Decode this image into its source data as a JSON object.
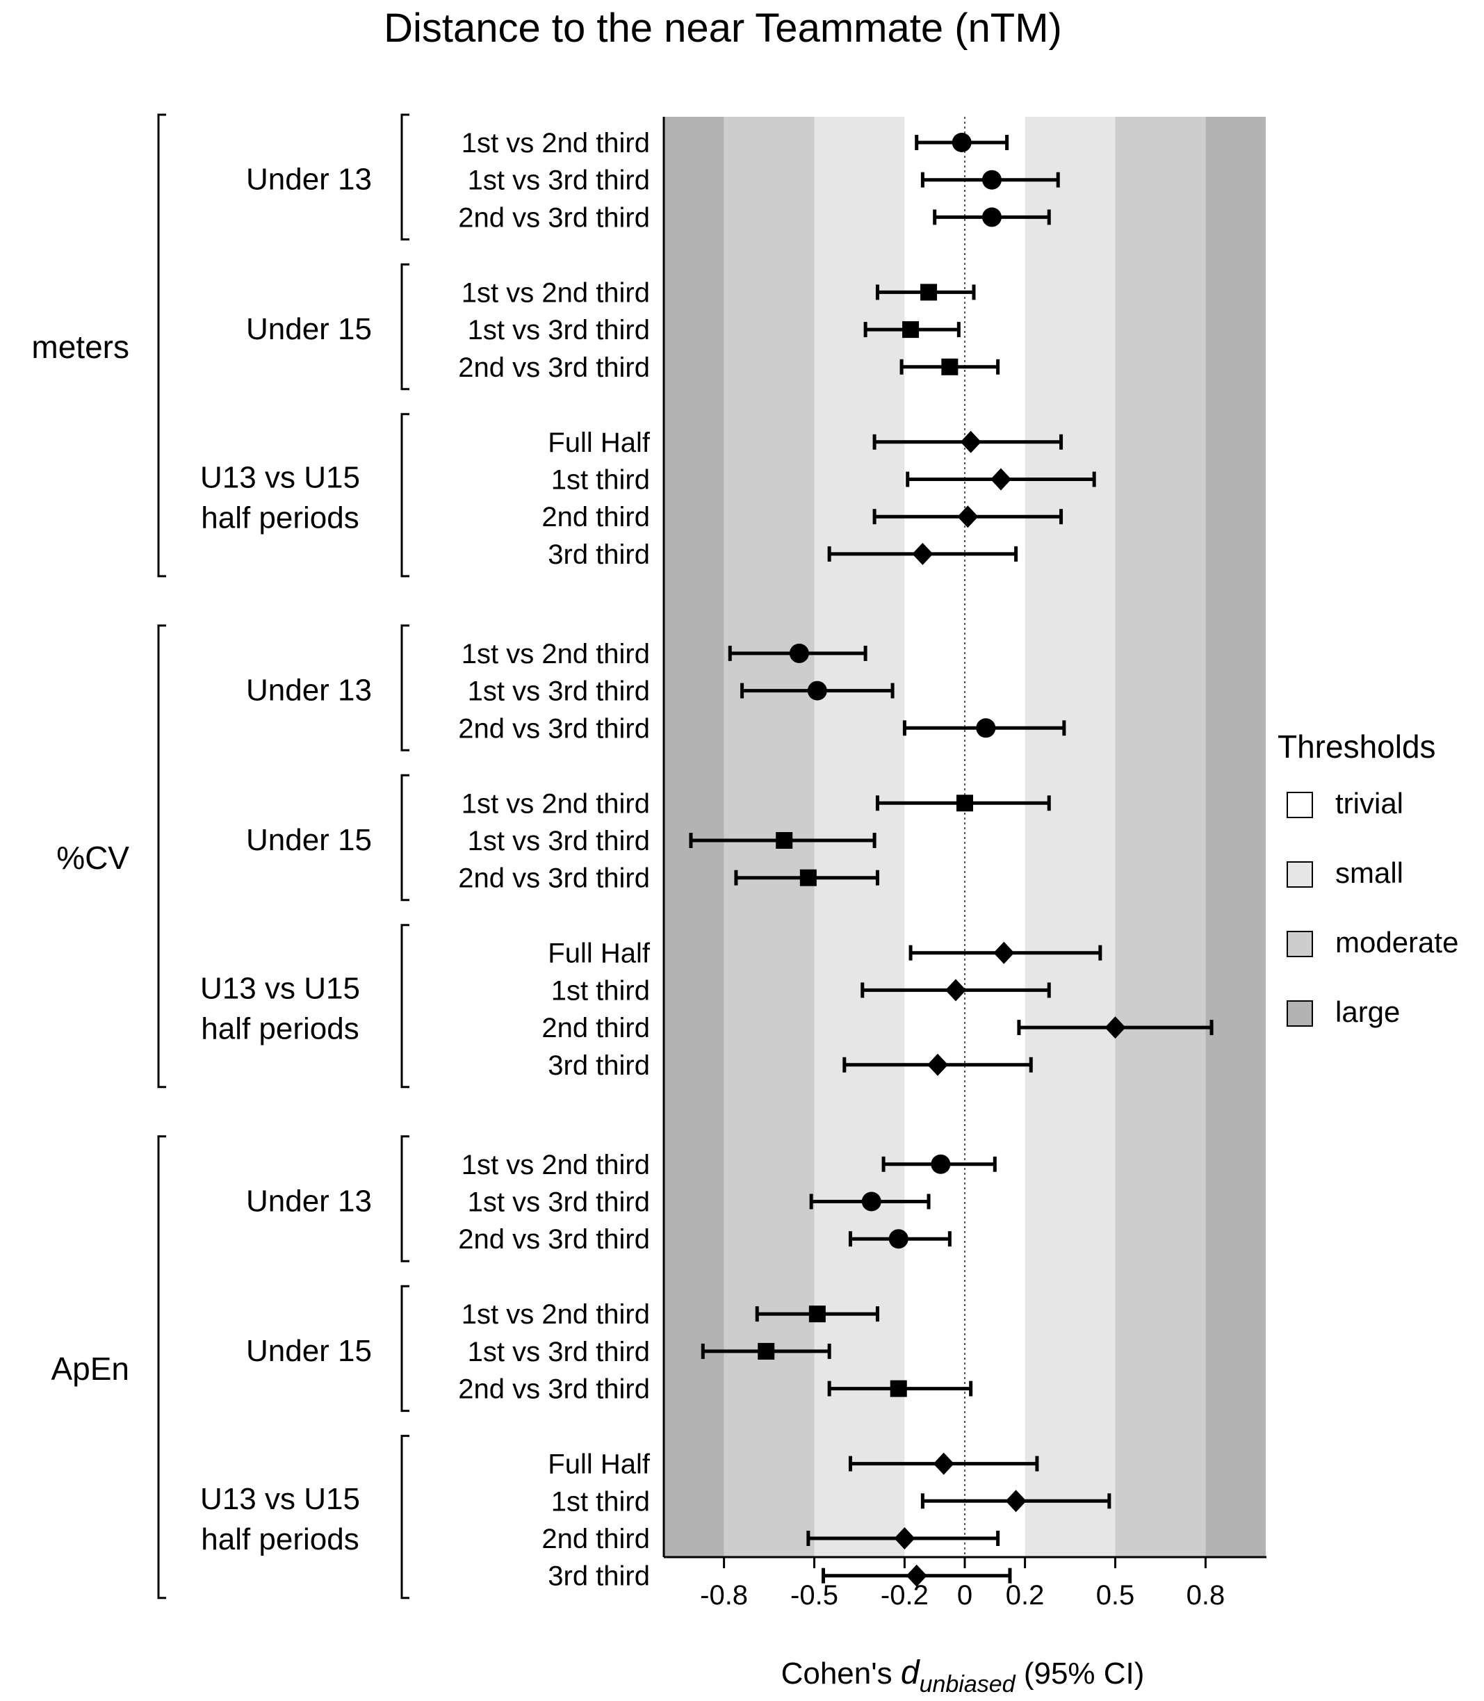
{
  "chart_data": {
    "type": "forest",
    "title": "Distance to the near Teammate (nTM)",
    "xlabel": "Cohen's ",
    "xlabel_italic": "d",
    "xlabel_subscript": "unbiased",
    "xlabel_suffix": " (95% CI)",
    "xlim": [
      -1.0,
      1.0
    ],
    "xticks": [
      {
        "value": -0.8,
        "label": "-0.8"
      },
      {
        "value": -0.5,
        "label": "-0.5"
      },
      {
        "value": -0.2,
        "label": "-0.2"
      },
      {
        "value": 0,
        "label": "0"
      },
      {
        "value": 0.2,
        "label": "0.2"
      },
      {
        "value": 0.5,
        "label": "0.5"
      },
      {
        "value": 0.8,
        "label": "0.8"
      }
    ],
    "reference_line": 0,
    "threshold_bands": [
      {
        "name": "trivial",
        "limits": [
          -0.2,
          0.2
        ],
        "color": "#ffffff"
      },
      {
        "name": "small",
        "limits": [
          0.2,
          0.5
        ],
        "color": "#e6e6e6"
      },
      {
        "name": "moderate",
        "limits": [
          0.5,
          0.8
        ],
        "color": "#cdcdcd"
      },
      {
        "name": "large",
        "limits": [
          0.8,
          1.0
        ],
        "color": "#b3b3b3"
      }
    ],
    "legend": {
      "title": "Thresholds",
      "position": "right",
      "items": [
        {
          "label": "trivial",
          "color": "#ffffff"
        },
        {
          "label": "small",
          "color": "#e6e6e6"
        },
        {
          "label": "moderate",
          "color": "#cdcdcd"
        },
        {
          "label": "large",
          "color": "#b3b3b3"
        }
      ]
    },
    "marker_legend": {
      "circle": "Under 13",
      "square": "Under 15",
      "diamond": "U13 vs U15 half periods"
    },
    "metrics": [
      {
        "name": "meters",
        "groups": [
          {
            "name": "Under 13",
            "marker": "circle",
            "rows": [
              {
                "label": "1st vs 2nd third",
                "est": -0.01,
                "lo": -0.16,
                "hi": 0.14
              },
              {
                "label": "1st vs 3rd third",
                "est": 0.09,
                "lo": -0.14,
                "hi": 0.31
              },
              {
                "label": "2nd vs 3rd third",
                "est": 0.09,
                "lo": -0.1,
                "hi": 0.28
              }
            ]
          },
          {
            "name": "Under 15",
            "marker": "square",
            "rows": [
              {
                "label": "1st vs 2nd third",
                "est": -0.12,
                "lo": -0.29,
                "hi": 0.03
              },
              {
                "label": "1st vs 3rd third",
                "est": -0.18,
                "lo": -0.33,
                "hi": -0.02
              },
              {
                "label": "2nd vs 3rd third",
                "est": -0.05,
                "lo": -0.21,
                "hi": 0.11
              }
            ]
          },
          {
            "name": "U13 vs U15 half periods",
            "name_lines": [
              "U13 vs U15",
              "half periods"
            ],
            "marker": "diamond",
            "rows": [
              {
                "label": "Full Half",
                "est": 0.02,
                "lo": -0.3,
                "hi": 0.32
              },
              {
                "label": "1st third",
                "est": 0.12,
                "lo": -0.19,
                "hi": 0.43
              },
              {
                "label": "2nd third",
                "est": 0.01,
                "lo": -0.3,
                "hi": 0.32
              },
              {
                "label": "3rd third",
                "est": -0.14,
                "lo": -0.45,
                "hi": 0.17
              }
            ]
          }
        ]
      },
      {
        "name": "%CV",
        "groups": [
          {
            "name": "Under 13",
            "marker": "circle",
            "rows": [
              {
                "label": "1st vs 2nd third",
                "est": -0.55,
                "lo": -0.78,
                "hi": -0.33
              },
              {
                "label": "1st vs 3rd third",
                "est": -0.49,
                "lo": -0.74,
                "hi": -0.24
              },
              {
                "label": "2nd vs 3rd third",
                "est": 0.07,
                "lo": -0.2,
                "hi": 0.33
              }
            ]
          },
          {
            "name": "Under 15",
            "marker": "square",
            "rows": [
              {
                "label": "1st vs 2nd third",
                "est": 0.0,
                "lo": -0.29,
                "hi": 0.28
              },
              {
                "label": "1st vs 3rd third",
                "est": -0.6,
                "lo": -0.91,
                "hi": -0.3
              },
              {
                "label": "2nd vs 3rd third",
                "est": -0.52,
                "lo": -0.76,
                "hi": -0.29
              }
            ]
          },
          {
            "name": "U13 vs U15 half periods",
            "name_lines": [
              "U13 vs U15",
              "half periods"
            ],
            "marker": "diamond",
            "rows": [
              {
                "label": "Full Half",
                "est": 0.13,
                "lo": -0.18,
                "hi": 0.45
              },
              {
                "label": "1st third",
                "est": -0.03,
                "lo": -0.34,
                "hi": 0.28
              },
              {
                "label": "2nd third",
                "est": 0.5,
                "lo": 0.18,
                "hi": 0.82
              },
              {
                "label": "3rd third",
                "est": -0.09,
                "lo": -0.4,
                "hi": 0.22
              }
            ]
          }
        ]
      },
      {
        "name": "ApEn",
        "groups": [
          {
            "name": "Under 13",
            "marker": "circle",
            "rows": [
              {
                "label": "1st vs 2nd third",
                "est": -0.08,
                "lo": -0.27,
                "hi": 0.1
              },
              {
                "label": "1st vs 3rd third",
                "est": -0.31,
                "lo": -0.51,
                "hi": -0.12
              },
              {
                "label": "2nd vs 3rd third",
                "est": -0.22,
                "lo": -0.38,
                "hi": -0.05
              }
            ]
          },
          {
            "name": "Under 15",
            "marker": "square",
            "rows": [
              {
                "label": "1st vs 2nd third",
                "est": -0.49,
                "lo": -0.69,
                "hi": -0.29
              },
              {
                "label": "1st vs 3rd third",
                "est": -0.66,
                "lo": -0.87,
                "hi": -0.45
              },
              {
                "label": "2nd vs 3rd third",
                "est": -0.22,
                "lo": -0.45,
                "hi": 0.02
              }
            ]
          },
          {
            "name": "U13 vs U15 half periods",
            "name_lines": [
              "U13 vs U15",
              "half periods"
            ],
            "marker": "diamond",
            "rows": [
              {
                "label": "Full Half",
                "est": -0.07,
                "lo": -0.38,
                "hi": 0.24
              },
              {
                "label": "1st third",
                "est": 0.17,
                "lo": -0.14,
                "hi": 0.48
              },
              {
                "label": "2nd third",
                "est": -0.2,
                "lo": -0.52,
                "hi": 0.11
              },
              {
                "label": "3rd third",
                "est": -0.16,
                "lo": -0.47,
                "hi": 0.15
              }
            ]
          }
        ]
      }
    ]
  }
}
